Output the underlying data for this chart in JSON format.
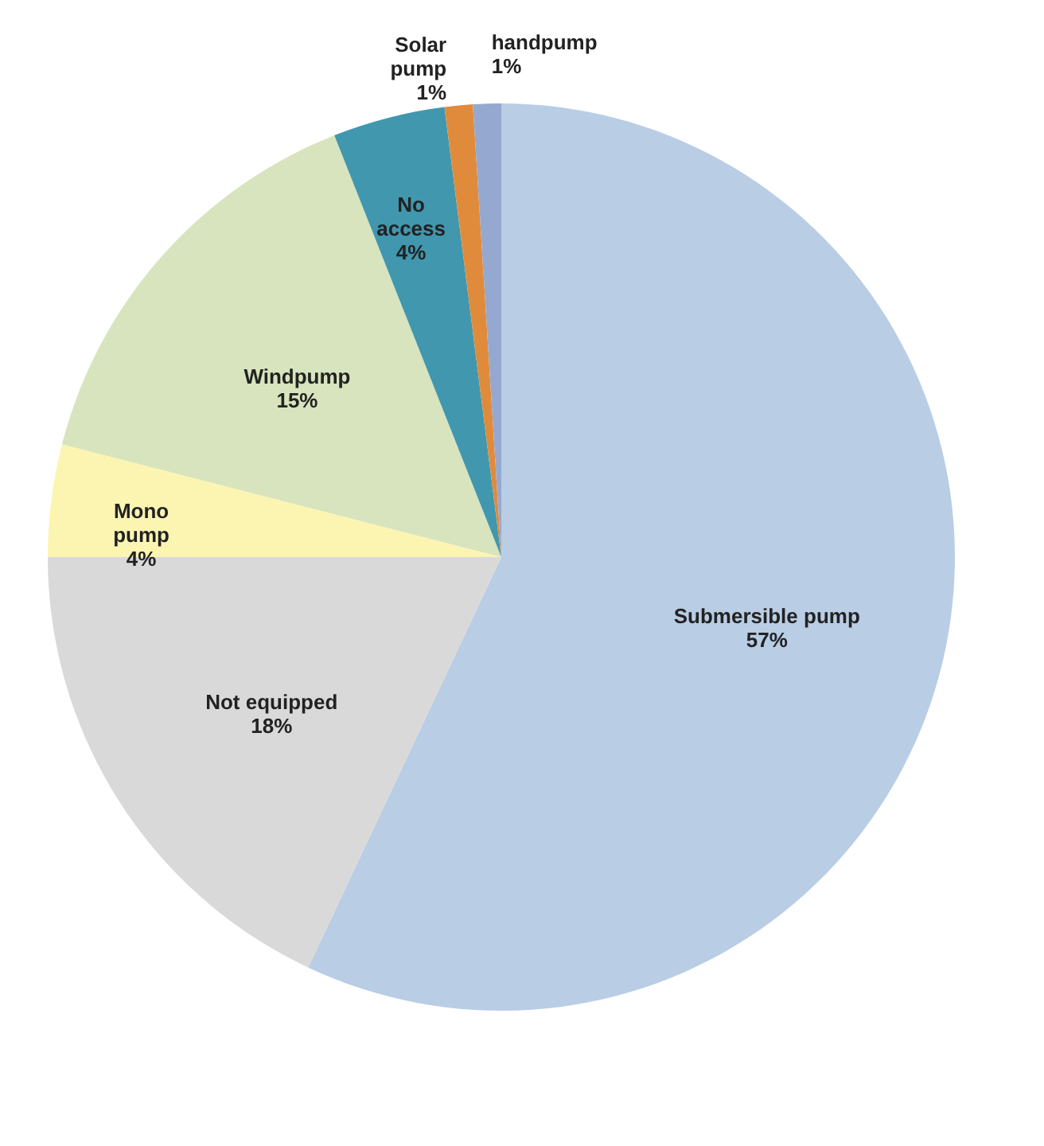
{
  "chart_data": {
    "type": "pie",
    "categories": [
      "Submersible pump",
      "Not equipped",
      "Mono pump",
      "Windpump",
      "No access",
      "Solar pump",
      "handpump"
    ],
    "values": [
      57,
      18,
      4,
      15,
      4,
      1,
      1
    ],
    "colors": [
      "#b9cde5",
      "#d9d9d9",
      "#fcf5b2",
      "#d7e4bd",
      "#4197ae",
      "#e08b3c",
      "#95a9d0"
    ],
    "value_labels": [
      "57%",
      "18%",
      "4%",
      "15%",
      "4%",
      "1%",
      "1%"
    ],
    "legend": false
  }
}
